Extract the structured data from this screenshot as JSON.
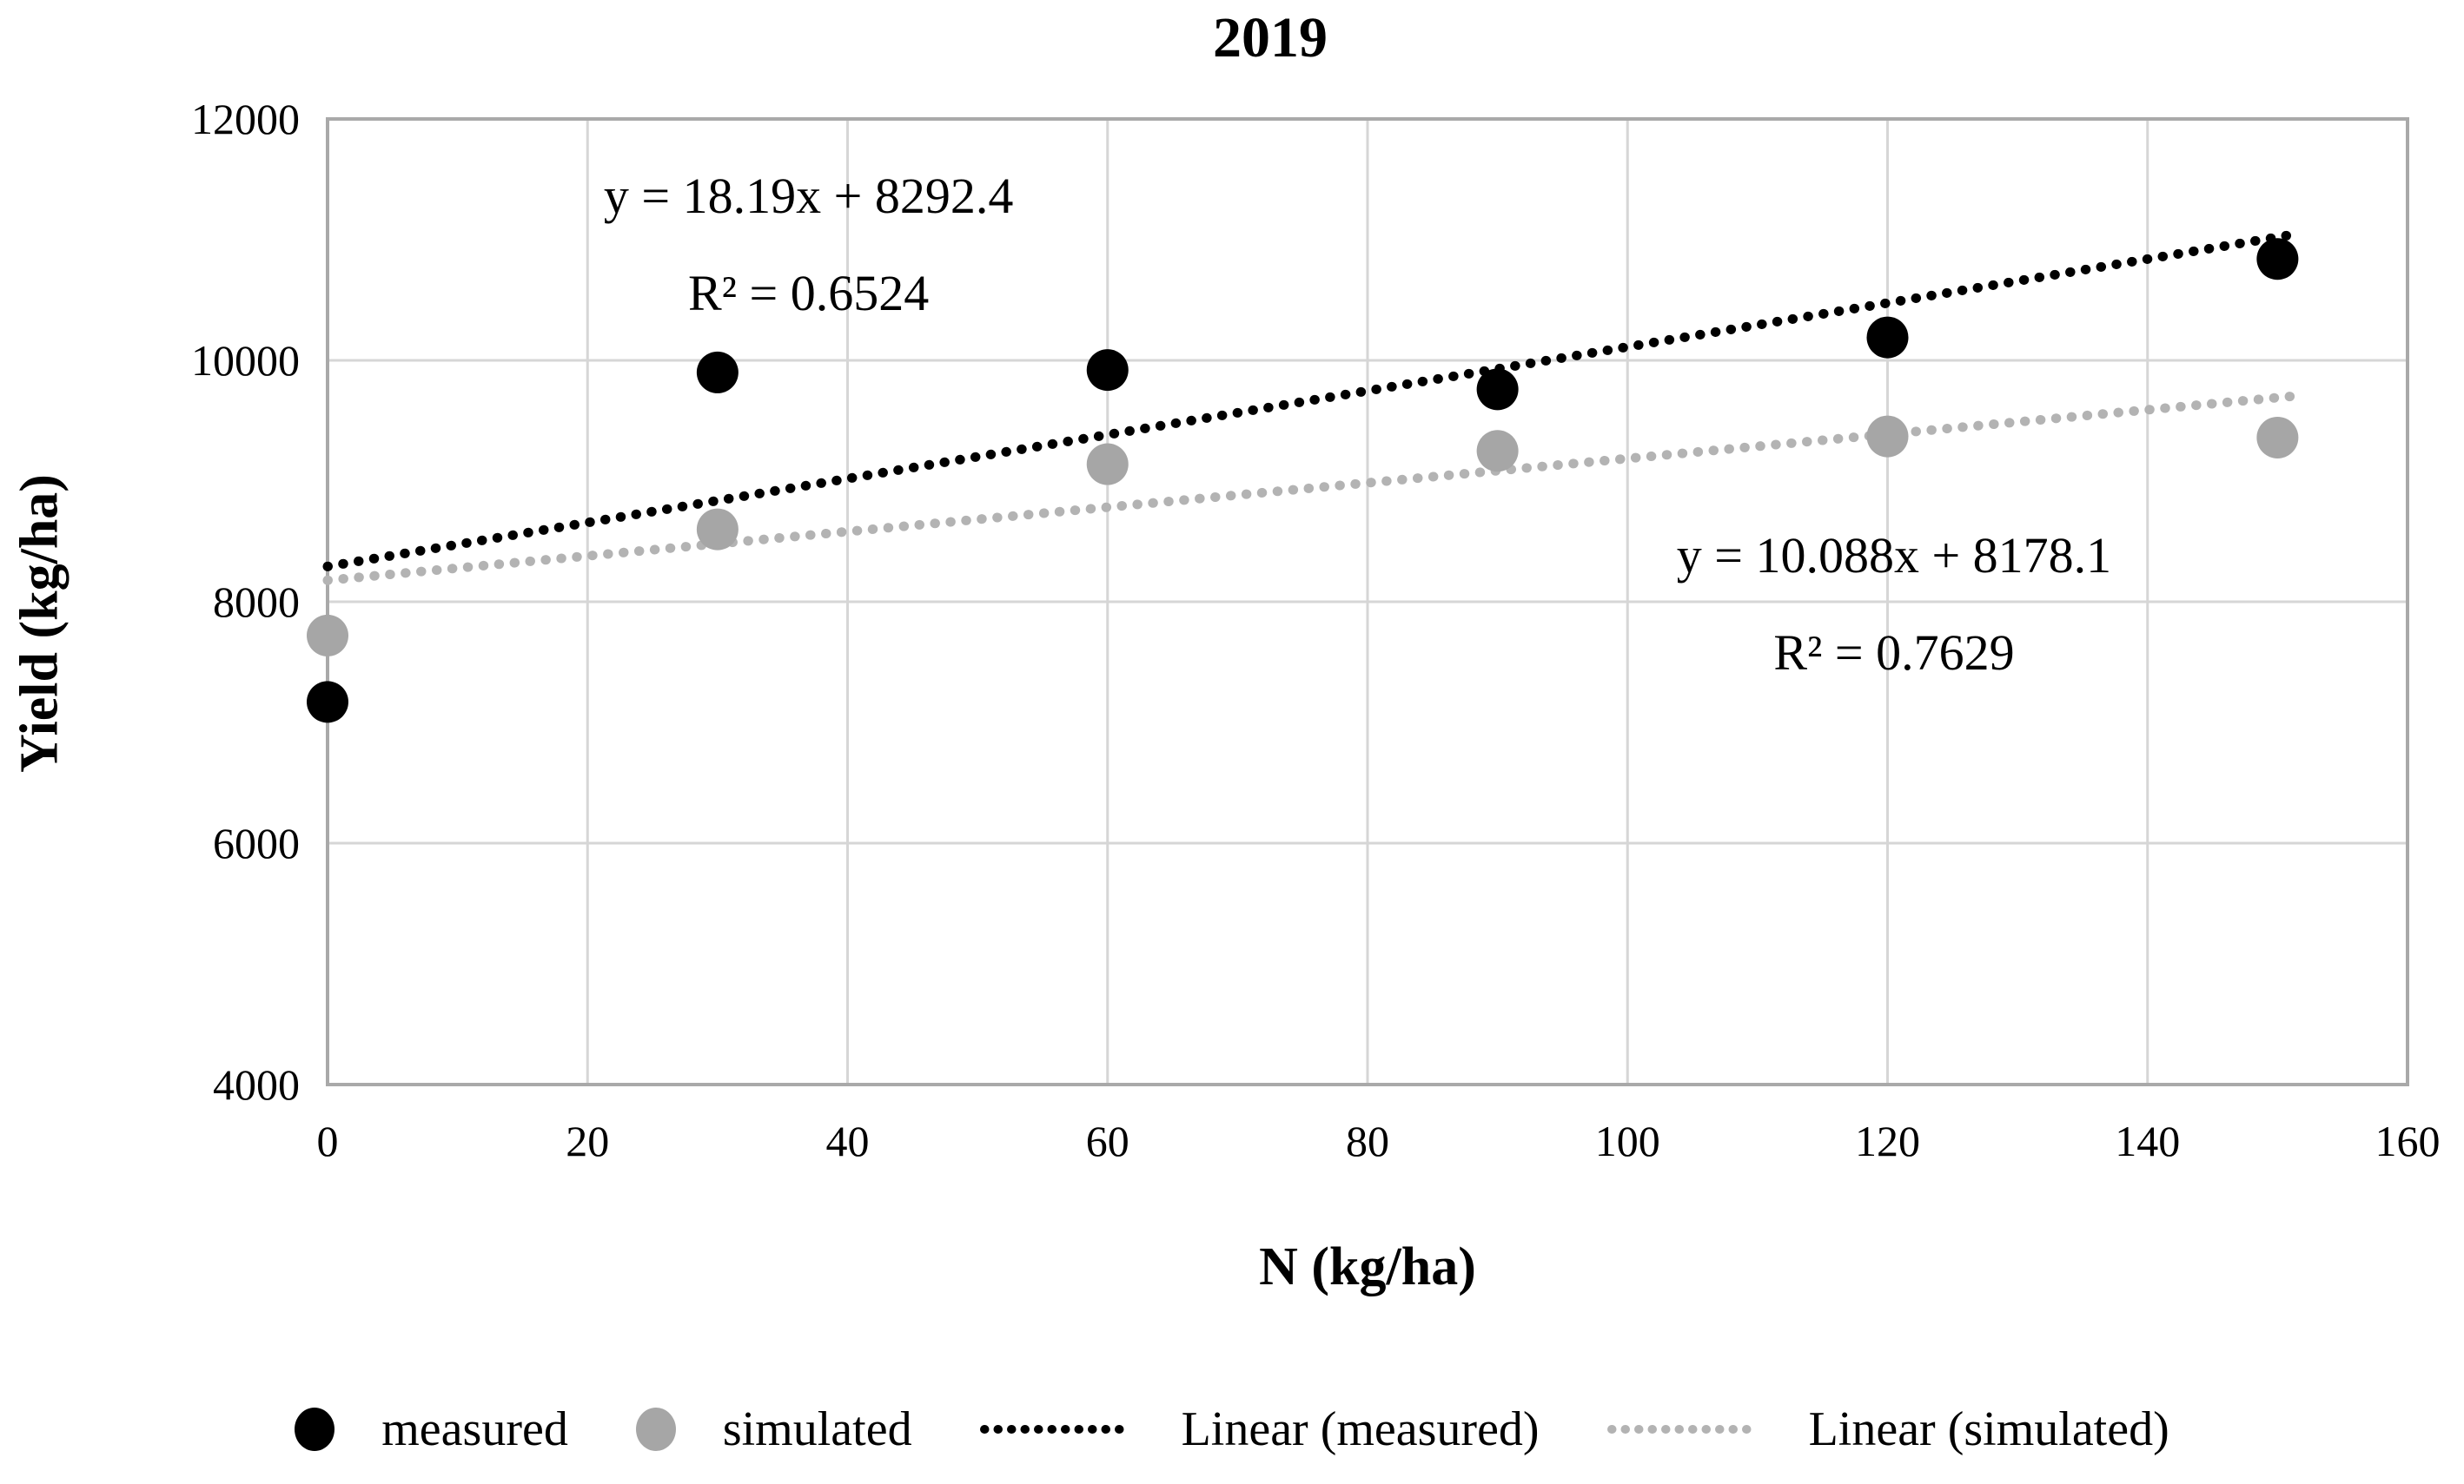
{
  "chart_data": {
    "type": "scatter",
    "title": "2019",
    "xlabel": "N (kg/ha)",
    "ylabel": "Yield (kg/ha)",
    "xlim": [
      0,
      160
    ],
    "ylim": [
      4000,
      12000
    ],
    "x_ticks": [
      0,
      20,
      40,
      60,
      80,
      100,
      120,
      140,
      160
    ],
    "y_ticks": [
      4000,
      6000,
      8000,
      10000,
      12000
    ],
    "grid": true,
    "legend_position": "bottom",
    "x": [
      0,
      30,
      60,
      90,
      120,
      150
    ],
    "series": [
      {
        "name": "measured",
        "color": "#000000",
        "values": [
          7170,
          9900,
          9920,
          9760,
          10190,
          10840
        ]
      },
      {
        "name": "simulated",
        "color": "#a6a6a6",
        "values": [
          7720,
          8600,
          9140,
          9250,
          9370,
          9360
        ]
      }
    ],
    "trendlines": [
      {
        "name": "Linear (measured)",
        "color": "#000000",
        "slope": 18.19,
        "intercept": 8292.4,
        "r2": 0.6524,
        "x_start": 0,
        "x_end": 151.5,
        "style": "dotted"
      },
      {
        "name": "Linear (simulated)",
        "color": "#b3b3b3",
        "slope": 10.088,
        "intercept": 8178.1,
        "r2": 0.7629,
        "x_start": 0,
        "x_end": 151.5,
        "style": "dotted"
      }
    ],
    "annotations": [
      {
        "series": "measured",
        "line1": "y = 18.19x + 8292.4",
        "line2": "R² = 0.6524",
        "x": 37,
        "y": 10960
      },
      {
        "series": "simulated",
        "line1": "y = 10.088x + 8178.1",
        "line2": "R² = 0.7629",
        "x": 120.5,
        "y": 7980
      }
    ],
    "legend": [
      "measured",
      "simulated",
      "Linear (measured)",
      "Linear (simulated)"
    ]
  },
  "colors": {
    "background": "#ffffff",
    "text": "#000000",
    "gridline": "#d6d6d6",
    "axis_frame": "#a9a9a9"
  }
}
